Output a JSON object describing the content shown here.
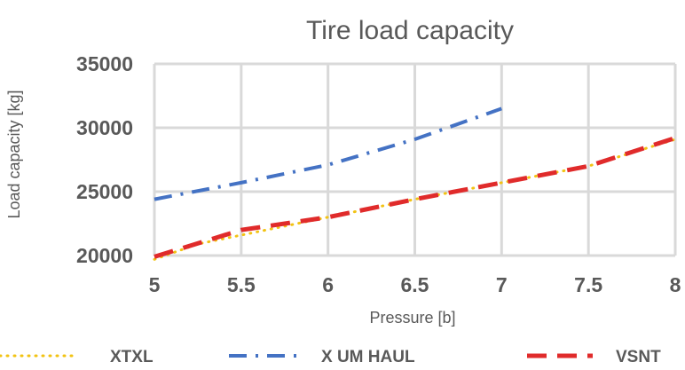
{
  "chart_data": {
    "type": "line",
    "title": "Tire load capacity",
    "xlabel": "Pressure [b]",
    "ylabel": "Load capacity [kg]",
    "xlim": [
      5,
      8
    ],
    "ylim": [
      20000,
      35000
    ],
    "x_ticks": [
      "5",
      "5.5",
      "6",
      "6.5",
      "7",
      "7.5",
      "8"
    ],
    "y_ticks": [
      "20000",
      "25000",
      "30000",
      "35000"
    ],
    "grid": true,
    "legend_position": "bottom",
    "series": [
      {
        "name": "XTXL",
        "color": "#f2c314",
        "style": "dotted",
        "points": [
          [
            5.0,
            19700
          ],
          [
            5.25,
            20900
          ],
          [
            5.5,
            21600
          ],
          [
            6.0,
            23000
          ],
          [
            6.5,
            24400
          ],
          [
            7.0,
            25700
          ],
          [
            7.5,
            27000
          ],
          [
            8.0,
            29100
          ]
        ]
      },
      {
        "name": "X UM HAUL",
        "color": "#4472c4",
        "style": "dash-dot",
        "points": [
          [
            5.0,
            24400
          ],
          [
            5.5,
            25700
          ],
          [
            6.0,
            27100
          ],
          [
            6.5,
            29100
          ],
          [
            7.0,
            31500
          ]
        ]
      },
      {
        "name": "VSNT",
        "color": "#e02b2b",
        "style": "dashed",
        "points": [
          [
            5.0,
            19900
          ],
          [
            5.5,
            22000
          ],
          [
            6.0,
            23000
          ],
          [
            6.5,
            24400
          ],
          [
            7.0,
            25700
          ],
          [
            7.5,
            27000
          ],
          [
            8.0,
            29200
          ]
        ]
      }
    ]
  }
}
